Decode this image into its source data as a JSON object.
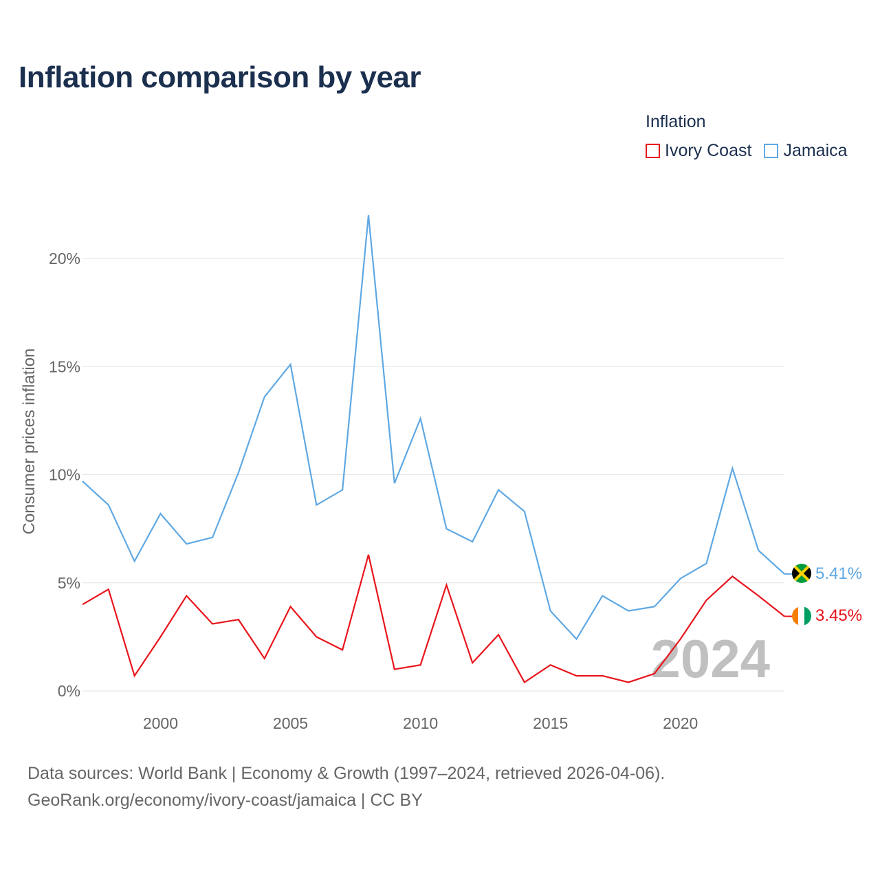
{
  "title": "Inflation comparison by year",
  "legend": {
    "title": "Inflation",
    "items": [
      {
        "label": "Ivory Coast",
        "color": "#e8141b"
      },
      {
        "label": "Jamaica",
        "color": "#5fa8e3"
      }
    ]
  },
  "footer": {
    "line1": "Data sources: World Bank | Economy & Growth (1997–2024, retrieved 2026-04-06).",
    "line2": "GeoRank.org/economy/ivory-coast/jamaica | CC BY"
  },
  "chart_data": {
    "type": "line",
    "ylabel": "Consumer prices inflation",
    "xlabel": "",
    "x": [
      1997,
      1998,
      1999,
      2000,
      2001,
      2002,
      2003,
      2004,
      2005,
      2006,
      2007,
      2008,
      2009,
      2010,
      2011,
      2012,
      2013,
      2014,
      2015,
      2016,
      2017,
      2018,
      2019,
      2020,
      2021,
      2022,
      2023,
      2024
    ],
    "xlim": [
      1997,
      2024
    ],
    "ylim": [
      0,
      22
    ],
    "x_ticks": [
      2000,
      2005,
      2010,
      2015,
      2020
    ],
    "x_tick_labels": [
      "2000",
      "2005",
      "2010",
      "2015",
      "2020"
    ],
    "y_ticks": [
      0,
      5,
      10,
      15,
      20
    ],
    "y_tick_labels": [
      "0%",
      "5%",
      "10%",
      "15%",
      "20%"
    ],
    "grid": true,
    "watermark_year": "2024",
    "series": [
      {
        "name": "Jamaica",
        "color": "#5fa8e3",
        "end_label": "5.41%",
        "flag": "jamaica-flag-icon",
        "values": [
          9.7,
          8.6,
          6.0,
          8.2,
          6.8,
          7.1,
          10.1,
          13.6,
          15.1,
          8.6,
          9.3,
          22.0,
          9.6,
          12.6,
          7.5,
          6.9,
          9.3,
          8.3,
          3.7,
          2.4,
          4.4,
          3.7,
          3.9,
          5.2,
          5.9,
          10.3,
          6.5,
          5.41
        ]
      },
      {
        "name": "Ivory Coast",
        "color": "#e8141b",
        "end_label": "3.45%",
        "flag": "ivory-coast-flag-icon",
        "values": [
          4.0,
          4.7,
          0.7,
          2.5,
          4.4,
          3.1,
          3.3,
          1.5,
          3.9,
          2.5,
          1.9,
          6.3,
          1.0,
          1.2,
          4.9,
          1.3,
          2.6,
          0.4,
          1.2,
          0.7,
          0.7,
          0.4,
          0.8,
          2.4,
          4.2,
          5.3,
          4.4,
          3.45
        ]
      }
    ]
  }
}
